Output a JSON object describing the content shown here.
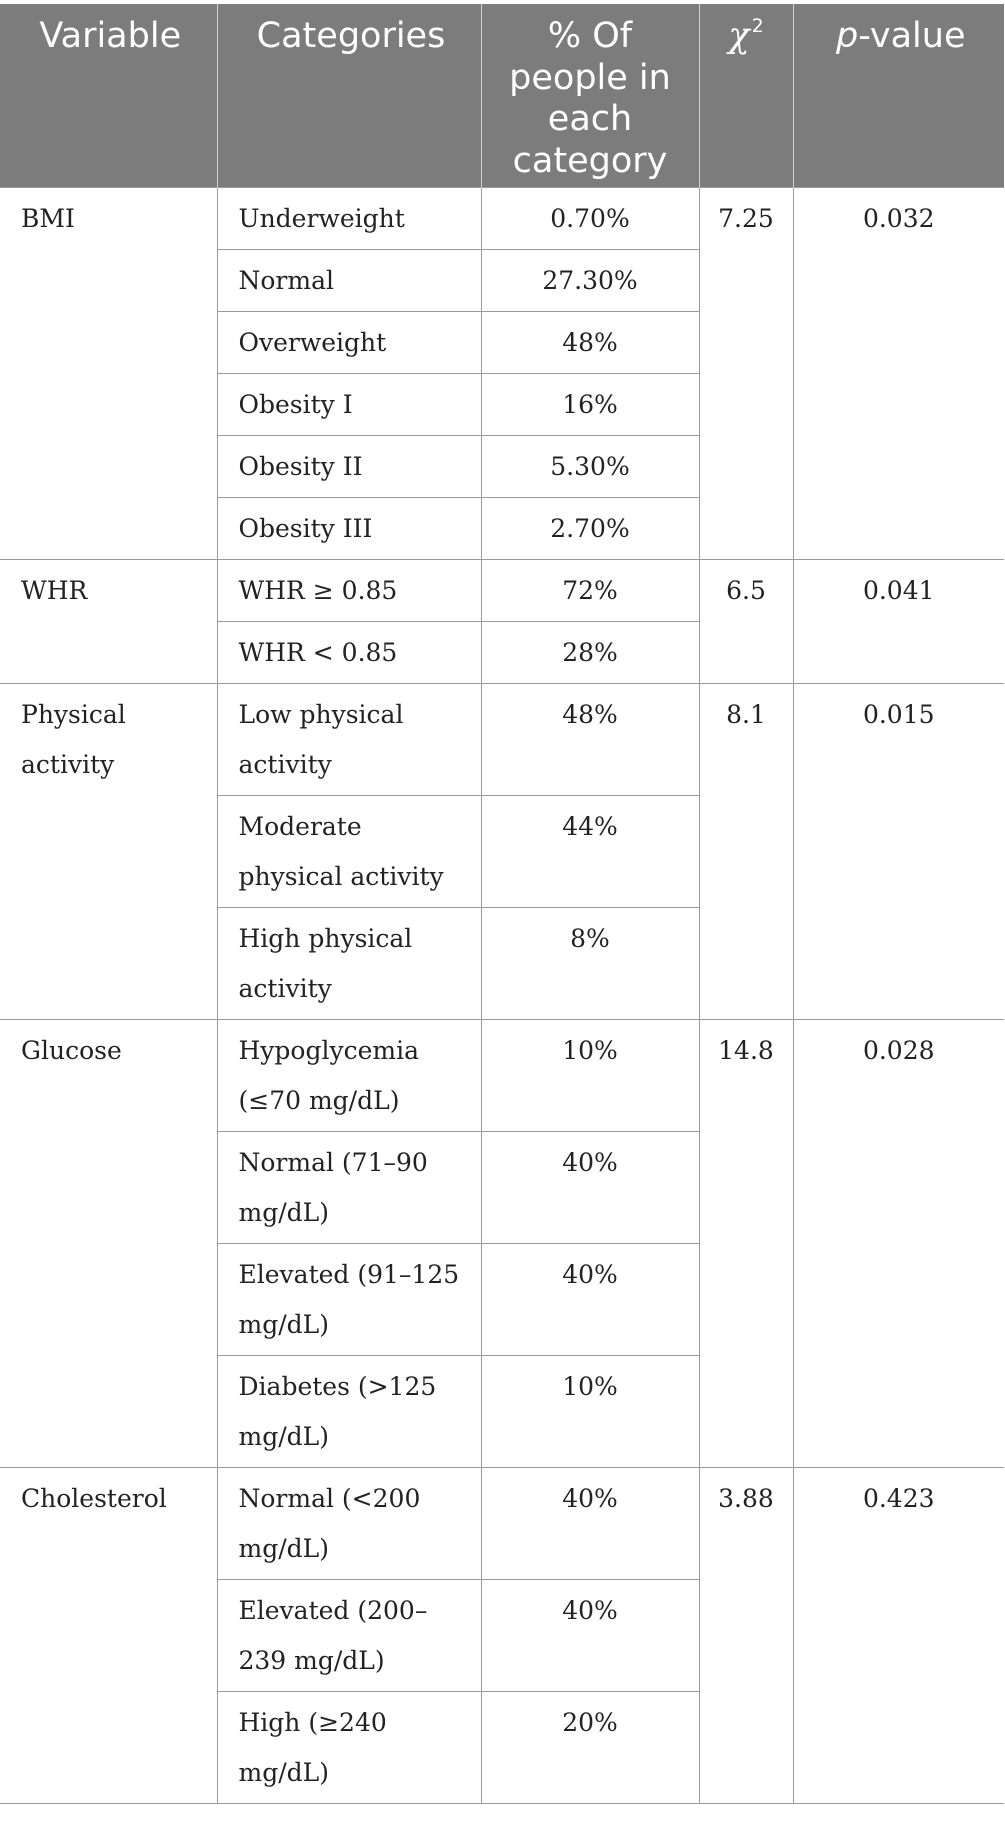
{
  "header": {
    "variable": "Variable",
    "categories": "Categories",
    "percent": "% Of people in each category",
    "chi_symbol": "χ",
    "chi_exp": "2",
    "p_italic": "p",
    "p_rest": "-value"
  },
  "groups": [
    {
      "variable": "BMI",
      "chi2": "7.25",
      "p": "0.032",
      "rows": [
        {
          "category": "Underweight",
          "percent": "0.70%"
        },
        {
          "category": "Normal",
          "percent": "27.30%"
        },
        {
          "category": "Overweight",
          "percent": "48%"
        },
        {
          "category": "Obesity I",
          "percent": "16%"
        },
        {
          "category": "Obesity II",
          "percent": "5.30%"
        },
        {
          "category": "Obesity III",
          "percent": "2.70%"
        }
      ]
    },
    {
      "variable": "WHR",
      "chi2": "6.5",
      "p": "0.041",
      "rows": [
        {
          "category": "WHR ≥ 0.85",
          "percent": "72%"
        },
        {
          "category": "WHR < 0.85",
          "percent": "28%"
        }
      ]
    },
    {
      "variable": "Physical activity",
      "chi2": "8.1",
      "p": "0.015",
      "rows": [
        {
          "category": "Low physical activity",
          "percent": "48%"
        },
        {
          "category": "Moderate physical activity",
          "percent": "44%"
        },
        {
          "category": "High physical activity",
          "percent": "8%"
        }
      ]
    },
    {
      "variable": "Glucose",
      "chi2": "14.8",
      "p": "0.028",
      "rows": [
        {
          "category": "Hypoglycemia (≤70 mg/dL)",
          "percent": "10%"
        },
        {
          "category": "Normal (71–90 mg/dL)",
          "percent": "40%"
        },
        {
          "category": "Elevated (91–125 mg/dL)",
          "percent": "40%"
        },
        {
          "category": "Diabetes (>125 mg/dL)",
          "percent": "10%"
        }
      ]
    },
    {
      "variable": "Cholesterol",
      "chi2": "3.88",
      "p": "0.423",
      "rows": [
        {
          "category": "Normal (<200 mg/dL)",
          "percent": "40%"
        },
        {
          "category": "Elevated (200–239 mg/dL)",
          "percent": "40%"
        },
        {
          "category": "High (≥240 mg/dL)",
          "percent": "20%"
        }
      ]
    }
  ]
}
